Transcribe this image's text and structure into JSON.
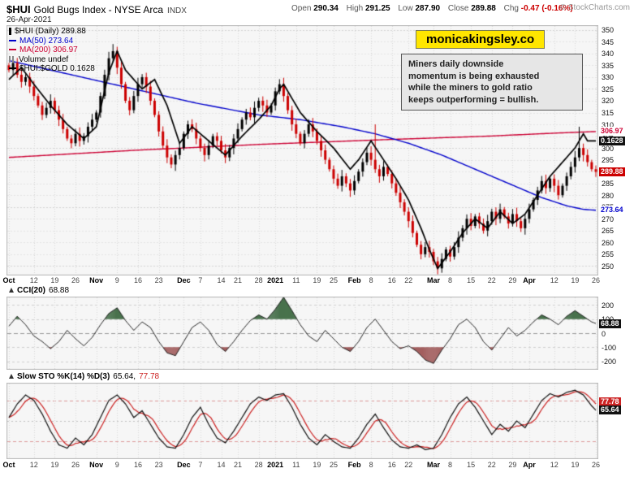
{
  "header": {
    "symbol": "$HUI",
    "name": "Gold Bugs Index - NYSE Arca",
    "exchange": "INDX",
    "date": "26-Apr-2021",
    "copyright": "© StockCharts.com",
    "quote": {
      "open_l": "Open",
      "open_v": "290.34",
      "high_l": "High",
      "high_v": "291.25",
      "low_l": "Low",
      "low_v": "287.90",
      "close_l": "Close",
      "close_v": "289.88",
      "chg_l": "Chg",
      "chg_v": "-0.47 (-0.16%)"
    }
  },
  "promo": {
    "text": "monicakingsley.co"
  },
  "annotation": {
    "lines": [
      "Miners daily downside",
      "momentum is being exhausted",
      "while the miners to gold ratio",
      "keeps outperforming = bullish."
    ]
  },
  "legend": {
    "items": [
      {
        "label": "$HUI (Daily) 289.88",
        "color": "#000000"
      },
      {
        "label": "MA(50) 273.64",
        "color": "#0000cc"
      },
      {
        "label": "MA(200) 306.97",
        "color": "#cc0033"
      },
      {
        "label": "Volume undef",
        "color": "#000000"
      },
      {
        "label": "$HUI:$GOLD 0.1628",
        "color": "#000000"
      }
    ]
  },
  "panel_labels": {
    "cci_name": "CCI(20)",
    "cci_value": "68.88",
    "sto_name": "Slow STO %K(14) %D(3)",
    "sto_k": "65.64,",
    "sto_d": "77.78"
  },
  "tags": {
    "main": [
      {
        "text": "306.97",
        "value": 306.97,
        "cls": "text-red"
      },
      {
        "text": "0.1628",
        "value": 303,
        "cls": "tag-black"
      },
      {
        "text": "289.88",
        "value": 289.88,
        "cls": "tag-red"
      },
      {
        "text": "273.64",
        "value": 273.64,
        "cls": "text-blue"
      }
    ],
    "cci": [
      {
        "text": "68.88",
        "value": 68.88,
        "cls": "tag-black"
      }
    ],
    "sto": [
      {
        "text": "77.78",
        "value": 77.78,
        "cls": "tag-redbox"
      },
      {
        "text": "65.64",
        "value": 65.64,
        "cls": "tag-black"
      }
    ]
  },
  "chart_data": {
    "type": "candlestick",
    "title": "$HUI Gold Bugs Index daily candlesticks with MA(50), MA(200), $HUI:$GOLD ratio overlay, CCI(20) and Slow Stochastics panels",
    "price_axis": {
      "min": 250,
      "max": 350,
      "step": 5,
      "labels": [
        350,
        345,
        340,
        335,
        330,
        325,
        320,
        315,
        310,
        305,
        300,
        295,
        290,
        285,
        280,
        275,
        270,
        265,
        260,
        255,
        250
      ]
    },
    "x_labels": [
      [
        "Oct",
        0
      ],
      [
        "12",
        6
      ],
      [
        "19",
        11
      ],
      [
        "26",
        16
      ],
      [
        "Nov",
        21
      ],
      [
        "9",
        26
      ],
      [
        "16",
        31
      ],
      [
        "23",
        36
      ],
      [
        "Dec",
        42
      ],
      [
        "7",
        46
      ],
      [
        "14",
        51
      ],
      [
        "21",
        55
      ],
      [
        "28",
        60
      ],
      [
        "2021",
        64
      ],
      [
        "11",
        69
      ],
      [
        "19",
        74
      ],
      [
        "25",
        78
      ],
      [
        "Feb",
        83
      ],
      [
        "8",
        87
      ],
      [
        "16",
        92
      ],
      [
        "22",
        96
      ],
      [
        "Mar",
        102
      ],
      [
        "8",
        106
      ],
      [
        "15",
        111
      ],
      [
        "22",
        116
      ],
      [
        "29",
        121
      ],
      [
        "Apr",
        125
      ],
      [
        "12",
        131
      ],
      [
        "19",
        136
      ],
      [
        "26",
        141
      ]
    ],
    "months": [
      "Oct",
      "Nov",
      "Dec",
      "2021",
      "Feb",
      "Mar",
      "Apr"
    ],
    "candles_close": [
      333,
      336,
      331,
      328,
      330,
      326,
      322,
      318,
      314,
      317,
      320,
      316,
      312,
      308,
      304,
      302,
      306,
      303,
      305,
      309,
      312,
      315,
      322,
      331,
      338,
      341,
      334,
      327,
      320,
      316,
      322,
      327,
      330,
      326,
      320,
      314,
      307,
      301,
      296,
      293,
      297,
      300,
      306,
      310,
      308,
      304,
      300,
      297,
      301,
      305,
      303,
      299,
      296,
      300,
      304,
      308,
      312,
      315,
      313,
      317,
      320,
      318,
      315,
      318,
      324,
      327,
      322,
      316,
      310,
      306,
      302,
      306,
      310,
      307,
      303,
      299,
      295,
      291,
      287,
      284,
      288,
      285,
      282,
      286,
      290,
      294,
      298,
      295,
      291,
      288,
      292,
      289,
      285,
      281,
      277,
      273,
      269,
      264,
      259,
      255,
      258,
      256,
      252,
      249,
      253,
      257,
      254,
      258,
      262,
      266,
      270,
      267,
      271,
      268,
      265,
      269,
      273,
      270,
      274,
      271,
      268,
      272,
      269,
      266,
      270,
      274,
      278,
      282,
      286,
      283,
      287,
      284,
      280,
      284,
      288,
      292,
      296,
      300,
      297,
      294,
      291,
      289.88
    ],
    "wick_overrides": {
      "highs": {
        "25": 344,
        "88": 310,
        "137": 309
      },
      "lows": {
        "103": 246.5
      }
    },
    "ma50": {
      "label": "MA(50)",
      "last": 273.64,
      "points": [
        [
          0,
          337
        ],
        [
          15,
          331
        ],
        [
          30,
          325
        ],
        [
          45,
          319
        ],
        [
          60,
          314
        ],
        [
          70,
          312
        ],
        [
          80,
          309
        ],
        [
          88,
          306
        ],
        [
          96,
          302
        ],
        [
          104,
          297
        ],
        [
          112,
          291
        ],
        [
          120,
          285
        ],
        [
          128,
          279
        ],
        [
          134,
          275.5
        ],
        [
          138,
          274
        ],
        [
          141,
          273.64
        ]
      ]
    },
    "ma200": {
      "label": "MA(200)",
      "last": 306.97,
      "points": [
        [
          0,
          296
        ],
        [
          30,
          299
        ],
        [
          60,
          301.5
        ],
        [
          90,
          303.5
        ],
        [
          115,
          305
        ],
        [
          130,
          306.2
        ],
        [
          141,
          306.97
        ]
      ]
    },
    "ratio": {
      "label": "$HUI:$GOLD",
      "last": 0.1628,
      "points": [
        [
          0,
          329
        ],
        [
          3,
          334
        ],
        [
          6,
          327
        ],
        [
          10,
          318
        ],
        [
          14,
          310
        ],
        [
          18,
          304
        ],
        [
          21,
          309
        ],
        [
          24,
          332
        ],
        [
          26,
          341
        ],
        [
          28,
          333
        ],
        [
          32,
          325
        ],
        [
          35,
          329
        ],
        [
          38,
          318
        ],
        [
          41,
          302
        ],
        [
          44,
          309
        ],
        [
          48,
          303
        ],
        [
          52,
          297
        ],
        [
          56,
          305
        ],
        [
          60,
          312
        ],
        [
          63,
          318
        ],
        [
          65,
          325
        ],
        [
          66,
          327
        ],
        [
          70,
          315
        ],
        [
          74,
          307
        ],
        [
          78,
          300
        ],
        [
          82,
          291
        ],
        [
          84,
          295
        ],
        [
          87,
          303
        ],
        [
          90,
          295
        ],
        [
          93,
          287
        ],
        [
          96,
          278
        ],
        [
          99,
          266
        ],
        [
          101,
          257
        ],
        [
          103,
          249
        ],
        [
          106,
          256
        ],
        [
          109,
          264
        ],
        [
          112,
          270
        ],
        [
          115,
          266
        ],
        [
          118,
          273
        ],
        [
          121,
          268
        ],
        [
          124,
          272
        ],
        [
          127,
          280
        ],
        [
          130,
          288
        ],
        [
          133,
          294
        ],
        [
          136,
          300
        ],
        [
          138,
          306
        ],
        [
          139,
          303
        ],
        [
          141,
          303
        ]
      ]
    },
    "cci": {
      "label": "CCI(20)",
      "last": 68.88,
      "axis_labels": [
        200,
        100,
        0,
        -100,
        -200
      ],
      "range": [
        -260,
        260
      ],
      "points": [
        [
          0,
          50
        ],
        [
          2,
          120
        ],
        [
          4,
          60
        ],
        [
          6,
          -20
        ],
        [
          8,
          -60
        ],
        [
          10,
          -110
        ],
        [
          12,
          -60
        ],
        [
          14,
          20
        ],
        [
          16,
          -40
        ],
        [
          18,
          -90
        ],
        [
          20,
          -30
        ],
        [
          22,
          60
        ],
        [
          24,
          140
        ],
        [
          26,
          180
        ],
        [
          28,
          90
        ],
        [
          30,
          20
        ],
        [
          32,
          80
        ],
        [
          34,
          40
        ],
        [
          36,
          -60
        ],
        [
          38,
          -140
        ],
        [
          40,
          -160
        ],
        [
          42,
          -60
        ],
        [
          44,
          40
        ],
        [
          46,
          80
        ],
        [
          48,
          20
        ],
        [
          50,
          -80
        ],
        [
          52,
          -130
        ],
        [
          54,
          -60
        ],
        [
          56,
          20
        ],
        [
          58,
          90
        ],
        [
          60,
          130
        ],
        [
          62,
          100
        ],
        [
          64,
          170
        ],
        [
          66,
          255
        ],
        [
          68,
          160
        ],
        [
          70,
          60
        ],
        [
          72,
          -20
        ],
        [
          74,
          -60
        ],
        [
          76,
          20
        ],
        [
          78,
          -40
        ],
        [
          80,
          -100
        ],
        [
          82,
          -130
        ],
        [
          84,
          -60
        ],
        [
          86,
          40
        ],
        [
          88,
          100
        ],
        [
          90,
          20
        ],
        [
          92,
          -60
        ],
        [
          94,
          -110
        ],
        [
          96,
          -90
        ],
        [
          98,
          -130
        ],
        [
          100,
          -190
        ],
        [
          102,
          -215
        ],
        [
          104,
          -120
        ],
        [
          106,
          -40
        ],
        [
          108,
          60
        ],
        [
          110,
          100
        ],
        [
          112,
          40
        ],
        [
          114,
          -60
        ],
        [
          116,
          -120
        ],
        [
          118,
          -40
        ],
        [
          120,
          40
        ],
        [
          122,
          -20
        ],
        [
          124,
          20
        ],
        [
          126,
          80
        ],
        [
          128,
          130
        ],
        [
          130,
          100
        ],
        [
          132,
          60
        ],
        [
          134,
          120
        ],
        [
          136,
          160
        ],
        [
          138,
          120
        ],
        [
          140,
          80
        ],
        [
          141,
          68.88
        ]
      ]
    },
    "sto": {
      "label": "Slow STO %K(14) %D(3)",
      "k_last": 65.64,
      "d_last": 77.78,
      "guides": [
        80,
        50,
        20
      ],
      "range": [
        0,
        100
      ],
      "k_points": [
        [
          0,
          55
        ],
        [
          2,
          75
        ],
        [
          4,
          88
        ],
        [
          6,
          80
        ],
        [
          8,
          60
        ],
        [
          10,
          35
        ],
        [
          12,
          15
        ],
        [
          14,
          10
        ],
        [
          16,
          25
        ],
        [
          18,
          15
        ],
        [
          20,
          30
        ],
        [
          22,
          55
        ],
        [
          24,
          80
        ],
        [
          26,
          88
        ],
        [
          28,
          75
        ],
        [
          30,
          55
        ],
        [
          32,
          65
        ],
        [
          34,
          45
        ],
        [
          36,
          25
        ],
        [
          38,
          12
        ],
        [
          40,
          10
        ],
        [
          42,
          30
        ],
        [
          44,
          55
        ],
        [
          46,
          70
        ],
        [
          48,
          45
        ],
        [
          50,
          25
        ],
        [
          52,
          18
        ],
        [
          54,
          35
        ],
        [
          56,
          55
        ],
        [
          58,
          75
        ],
        [
          60,
          85
        ],
        [
          62,
          80
        ],
        [
          64,
          88
        ],
        [
          66,
          90
        ],
        [
          68,
          70
        ],
        [
          70,
          45
        ],
        [
          72,
          25
        ],
        [
          74,
          15
        ],
        [
          76,
          30
        ],
        [
          78,
          20
        ],
        [
          80,
          12
        ],
        [
          82,
          10
        ],
        [
          84,
          25
        ],
        [
          86,
          45
        ],
        [
          88,
          60
        ],
        [
          90,
          40
        ],
        [
          92,
          22
        ],
        [
          94,
          12
        ],
        [
          96,
          10
        ],
        [
          98,
          15
        ],
        [
          100,
          8
        ],
        [
          102,
          10
        ],
        [
          104,
          30
        ],
        [
          106,
          55
        ],
        [
          108,
          75
        ],
        [
          110,
          85
        ],
        [
          112,
          70
        ],
        [
          114,
          50
        ],
        [
          116,
          30
        ],
        [
          118,
          45
        ],
        [
          120,
          35
        ],
        [
          122,
          50
        ],
        [
          124,
          40
        ],
        [
          126,
          60
        ],
        [
          128,
          80
        ],
        [
          130,
          90
        ],
        [
          132,
          85
        ],
        [
          134,
          92
        ],
        [
          136,
          95
        ],
        [
          138,
          88
        ],
        [
          140,
          72
        ],
        [
          141,
          65.64
        ]
      ]
    }
  }
}
